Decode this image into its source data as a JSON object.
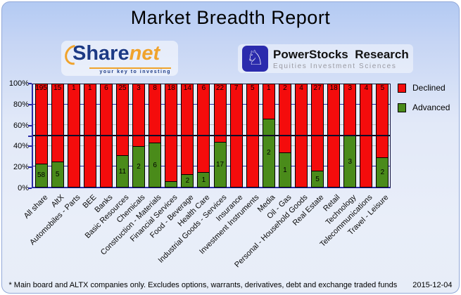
{
  "title": "Market Breadth Report",
  "logos": {
    "sharenet": {
      "word_part1": "Share",
      "word_part2": "net",
      "tagline": "your key to investing",
      "icon": "orange-arc"
    },
    "powerstocks": {
      "icon": "knight-chess-piece-icon",
      "line1": "PowerStocks  Research",
      "line2": "Equities Investment Sciences"
    }
  },
  "chart_data": {
    "type": "bar",
    "stacking": "percent",
    "title": "Market Breadth Report",
    "xlabel": "",
    "ylabel": "",
    "ylim": [
      0,
      100
    ],
    "y_ticks": [
      "100%",
      "80%",
      "60%",
      "40%",
      "20%",
      "0%"
    ],
    "grid": "horizontal, dashed segments visible between bars; solid dark reference line at 50%",
    "legend_position": "top-right outside plot",
    "categories": [
      "All share",
      "AltX",
      "Automobiles - Parts",
      "BEE",
      "Banks",
      "Basic Resources",
      "Chemicals",
      "Construction - Materials",
      "Financial Services",
      "Food - Beverage",
      "Health Care",
      "Industrial Goods - Services",
      "Insurance",
      "Investment Instruments",
      "Media",
      "Oil - Gas",
      "Personal - Household Goods",
      "Real Estate",
      "Retail",
      "Technology",
      "Telecommunications",
      "Travel - Leisure"
    ],
    "series": [
      {
        "name": "Declined",
        "color": "#f40c0c",
        "values": [
          195,
          15,
          1,
          1,
          6,
          25,
          3,
          8,
          18,
          14,
          6,
          22,
          7,
          5,
          1,
          2,
          4,
          27,
          18,
          3,
          4,
          5
        ]
      },
      {
        "name": "Advanced",
        "color": "#4a8b1a",
        "values": [
          58,
          5,
          0,
          0,
          0,
          11,
          2,
          6,
          1,
          2,
          1,
          17,
          0,
          0,
          2,
          1,
          0,
          5,
          0,
          3,
          0,
          2
        ]
      }
    ],
    "data_labels": {
      "declined": [
        "195",
        "15",
        "1",
        "1",
        "6",
        "25",
        "3",
        "8",
        "18",
        "14",
        "6",
        "22",
        "7",
        "5",
        "1",
        "2",
        "4",
        "27",
        "18",
        "3",
        "4",
        "5"
      ],
      "advanced": [
        "58",
        "5",
        "",
        "",
        "",
        "11",
        "2",
        "6",
        "",
        "2",
        "1",
        "17",
        "",
        "",
        "2",
        "1",
        "",
        "5",
        "",
        "3",
        "",
        "2"
      ]
    }
  },
  "footer": {
    "note": "* Main board and ALTX companies only. Excludes options, warrants, derivatives, debt and exchange traded funds",
    "date": "2015-12-04"
  }
}
